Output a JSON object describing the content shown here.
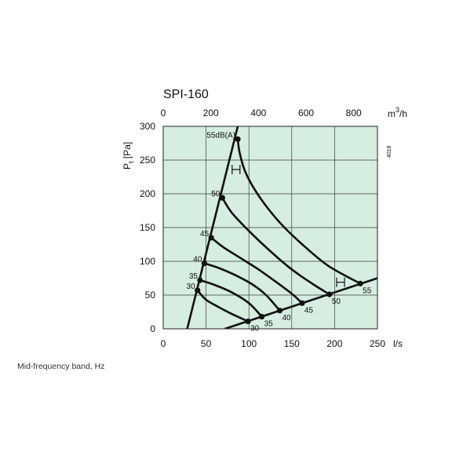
{
  "caption": "Mid-frequency band, Hz",
  "chart_data": {
    "type": "line",
    "title": "SPI-160",
    "xlabel": "l/s",
    "ylabel": "Pt [Pa]",
    "ylabel_main": "P",
    "ylabel_sub": "t",
    "ylabel_unit": "[Pa]",
    "x2label_base": "m",
    "x2label_sup": "3",
    "x2label_rest": "/h",
    "code": "4018",
    "xlim": [
      0,
      250
    ],
    "ylim": [
      0,
      300
    ],
    "x2lim": [
      0,
      900
    ],
    "x_ticks": [
      "0",
      "50",
      "100",
      "150",
      "200",
      "250"
    ],
    "x_tick_values": [
      0,
      50,
      100,
      150,
      200,
      250
    ],
    "y_ticks": [
      "0",
      "50",
      "100",
      "150",
      "200",
      "250",
      "300"
    ],
    "y_tick_values": [
      0,
      50,
      100,
      150,
      200,
      250,
      300
    ],
    "x2_ticks": [
      "0",
      "200",
      "400",
      "600",
      "800"
    ],
    "x2_tick_values": [
      0,
      200,
      400,
      600,
      800
    ],
    "grid": true,
    "background_color": "#d6ede1",
    "line_color": "#111111",
    "system_curves": [
      {
        "points": [
          [
            28,
            0
          ],
          [
            87,
            300
          ]
        ]
      },
      {
        "points": [
          [
            72,
            0
          ],
          [
            250,
            75
          ]
        ]
      }
    ],
    "series": [
      {
        "name": "55dB(A)",
        "points": [
          [
            87,
            281
          ],
          [
            89,
            262
          ],
          [
            95,
            235
          ],
          [
            105,
            210
          ],
          [
            120,
            182
          ],
          [
            140,
            152
          ],
          [
            165,
            122
          ],
          [
            193,
            93
          ],
          [
            230,
            67
          ]
        ]
      },
      {
        "name": "50",
        "points": [
          [
            69,
            194
          ],
          [
            80,
            172
          ],
          [
            100,
            145
          ],
          [
            125,
            115
          ],
          [
            150,
            88
          ],
          [
            175,
            66
          ],
          [
            194,
            51
          ]
        ]
      },
      {
        "name": "45",
        "points": [
          [
            56,
            135
          ],
          [
            70,
            121
          ],
          [
            90,
            105
          ],
          [
            110,
            89
          ],
          [
            130,
            71
          ],
          [
            150,
            52
          ],
          [
            162,
            38
          ]
        ]
      },
      {
        "name": "40",
        "points": [
          [
            48,
            97
          ],
          [
            65,
            90
          ],
          [
            85,
            79
          ],
          [
            105,
            65
          ],
          [
            120,
            50
          ],
          [
            136,
            27
          ]
        ]
      },
      {
        "name": "35",
        "points": [
          [
            43,
            72
          ],
          [
            60,
            65
          ],
          [
            80,
            54
          ],
          [
            100,
            38
          ],
          [
            115,
            18
          ]
        ]
      },
      {
        "name": "30",
        "points": [
          [
            40,
            57
          ],
          [
            50,
            43
          ],
          [
            65,
            32
          ],
          [
            80,
            22
          ],
          [
            99,
            11
          ]
        ]
      }
    ],
    "point_labels": [
      {
        "text": "55dB(A)",
        "x": 87,
        "y": 281,
        "side": "left"
      },
      {
        "text": "50",
        "x": 69,
        "y": 194,
        "side": "left"
      },
      {
        "text": "45",
        "x": 56,
        "y": 135,
        "side": "left"
      },
      {
        "text": "40",
        "x": 48,
        "y": 97,
        "side": "left"
      },
      {
        "text": "35",
        "x": 43,
        "y": 72,
        "side": "left"
      },
      {
        "text": "30",
        "x": 40,
        "y": 57,
        "side": "left"
      },
      {
        "text": "55",
        "x": 230,
        "y": 67,
        "side": "below-right"
      },
      {
        "text": "50",
        "x": 194,
        "y": 51,
        "side": "below-right"
      },
      {
        "text": "45",
        "x": 162,
        "y": 38,
        "side": "below-right"
      },
      {
        "text": "40",
        "x": 136,
        "y": 27,
        "side": "below-right"
      },
      {
        "text": "35",
        "x": 115,
        "y": 18,
        "side": "below-right"
      },
      {
        "text": "30",
        "x": 99,
        "y": 11,
        "side": "below-right"
      }
    ],
    "range_markers": [
      {
        "x": 85,
        "y": 236
      },
      {
        "x": 207,
        "y": 69
      }
    ]
  }
}
